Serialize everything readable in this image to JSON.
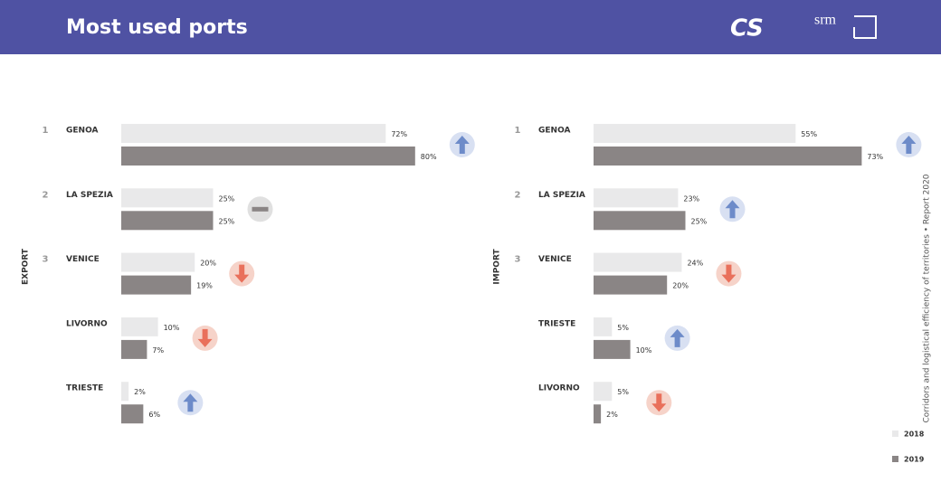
{
  "header": {
    "title": "Most used ports",
    "logos": [
      "CS",
      "srm"
    ]
  },
  "side_note": "Corridors and logistical efficiency of territories • Report 2020",
  "chart_data": [
    {
      "type": "bar",
      "orientation": "horizontal",
      "title": "EXPORT",
      "ranks": [
        1,
        2,
        3,
        null,
        null
      ],
      "categories": [
        "GENOA",
        "LA SPEZIA",
        "VENICE",
        "LIVORNO",
        "TRIESTE"
      ],
      "series": [
        {
          "name": "2018",
          "color": "#e9e9ea",
          "values": [
            72,
            25,
            20,
            10,
            2
          ],
          "value_labels": [
            "72%",
            "25%",
            "20%",
            "10%",
            "2%"
          ]
        },
        {
          "name": "2019",
          "color": "#8a8585",
          "values": [
            80,
            25,
            19,
            7,
            6
          ],
          "value_labels": [
            "80%",
            "25%",
            "19%",
            "7%",
            "6%"
          ]
        }
      ]
    },
    {
      "type": "bar",
      "orientation": "horizontal",
      "title": "IMPORT",
      "ranks": [
        1,
        2,
        3,
        null,
        null
      ],
      "categories": [
        "GENOA",
        "LA SPEZIA",
        "VENICE",
        "TRIESTE",
        "LIVORNO"
      ],
      "series": [
        {
          "name": "2018",
          "color": "#e9e9ea",
          "values": [
            55,
            23,
            24,
            5,
            5
          ],
          "value_labels": [
            "55%",
            "23%",
            "24%",
            "5%",
            "5%"
          ]
        },
        {
          "name": "2019",
          "color": "#8a8585",
          "values": [
            73,
            25,
            20,
            10,
            2
          ],
          "value_labels": [
            "73%",
            "25%",
            "20%",
            "10%",
            "2%"
          ]
        }
      ]
    }
  ]
}
